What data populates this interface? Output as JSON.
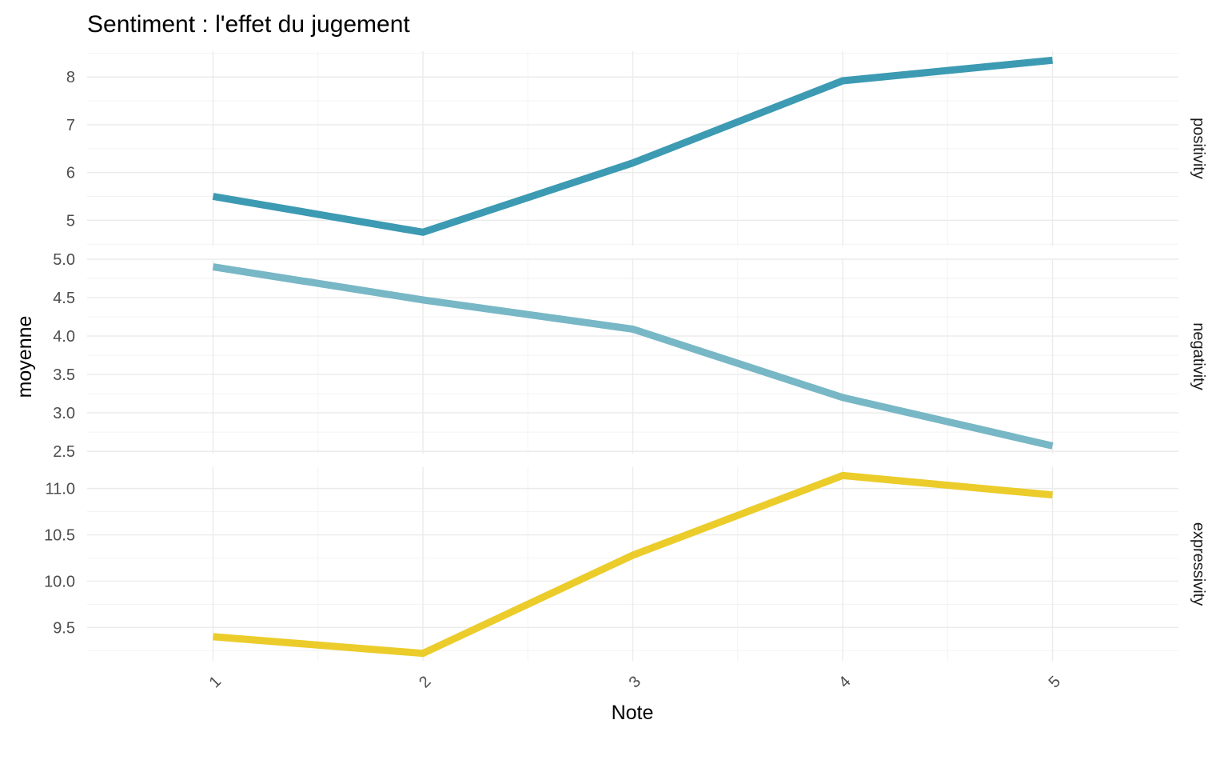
{
  "chart_data": {
    "type": "line",
    "title": "Sentiment : l'effet du jugement",
    "xlabel": "Note",
    "ylabel": "moyenne",
    "x": [
      1,
      2,
      3,
      4,
      5
    ],
    "x_tick_labels": [
      "1",
      "2",
      "3",
      "4",
      "5"
    ],
    "x_range": [
      0.4,
      5.6
    ],
    "grid": true,
    "facets": [
      {
        "strip_label": "positivity",
        "color": "#3c9ab2",
        "values": [
          5.5,
          4.75,
          6.2,
          7.92,
          8.35
        ],
        "ylim": [
          4.47,
          8.54
        ],
        "yticks": [
          5,
          6,
          7,
          8
        ],
        "ytick_labels": [
          "5",
          "6",
          "7",
          "8"
        ]
      },
      {
        "strip_label": "negativity",
        "color": "#78b7c5",
        "values": [
          4.9,
          4.47,
          4.09,
          3.2,
          2.57
        ],
        "ylim": [
          2.47,
          5.0
        ],
        "yticks": [
          2.5,
          3.0,
          3.5,
          4.0,
          4.5,
          5.0
        ],
        "ytick_labels": [
          "2.5",
          "3.0",
          "3.5",
          "4.0",
          "4.5",
          "5.0"
        ]
      },
      {
        "strip_label": "expressivity",
        "color": "#ebcc2a",
        "values": [
          9.4,
          9.22,
          10.28,
          11.14,
          10.93
        ],
        "ylim": [
          9.14,
          11.23
        ],
        "yticks": [
          9.5,
          10.0,
          10.5,
          11.0
        ],
        "ytick_labels": [
          "9.5",
          "10.0",
          "10.5",
          "11.0"
        ]
      }
    ]
  }
}
